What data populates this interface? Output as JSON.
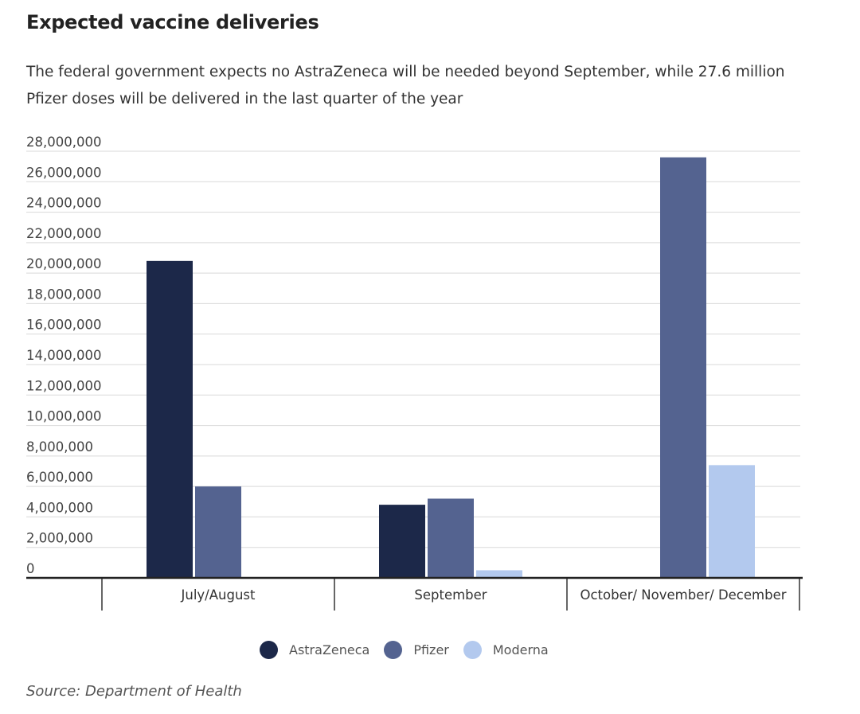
{
  "header": {
    "title": "Expected vaccine deliveries",
    "subtitle": "The federal government expects no AstraZeneca will be needed beyond September, while 27.6 million Pfizer doses will be delivered in the last quarter of the year"
  },
  "chart_data": {
    "type": "bar",
    "title": "Expected vaccine deliveries",
    "xlabel": "",
    "ylabel": "",
    "categories": [
      "July/August",
      "September",
      "October/ November/ December"
    ],
    "series": [
      {
        "name": "AstraZeneca",
        "color": "#1c2849",
        "values": [
          20800000,
          4800000,
          0
        ]
      },
      {
        "name": "Pfizer",
        "color": "#546390",
        "values": [
          6000000,
          5200000,
          27600000
        ]
      },
      {
        "name": "Moderna",
        "color": "#b3c9ee",
        "values": [
          0,
          500000,
          7400000
        ]
      }
    ],
    "ylim": [
      0,
      28000000
    ],
    "yticks": [
      0,
      2000000,
      4000000,
      6000000,
      8000000,
      10000000,
      12000000,
      14000000,
      16000000,
      18000000,
      20000000,
      22000000,
      24000000,
      26000000,
      28000000
    ],
    "ytick_labels": [
      "0",
      "2,000,000",
      "4,000,000",
      "6,000,000",
      "8,000,000",
      "10,000,000",
      "12,000,000",
      "14,000,000",
      "16,000,000",
      "18,000,000",
      "20,000,000",
      "22,000,000",
      "24,000,000",
      "26,000,000",
      "28,000,000"
    ],
    "grid": true,
    "legend_position": "bottom"
  },
  "footer": {
    "source": "Source: Department of Health"
  }
}
